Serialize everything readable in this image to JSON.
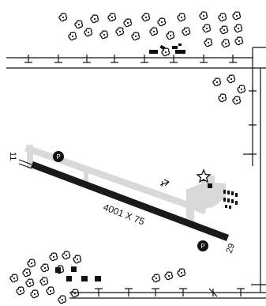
{
  "runway": {
    "dimensions": "4001 X 75",
    "end_west": "11",
    "end_east": "29"
  },
  "markers": {
    "parking_west": "P",
    "parking_east": "P"
  },
  "icons": {
    "trees": "tree-cluster-icon",
    "beacon": "rotating-beacon-star-icon",
    "wind": "wind-indicator-icon",
    "parking": "parking-circle-icon"
  },
  "colors": {
    "runway": "#1a1a1a",
    "taxiway": "#d9d9d9",
    "ink": "#111111",
    "background": "#ffffff"
  }
}
